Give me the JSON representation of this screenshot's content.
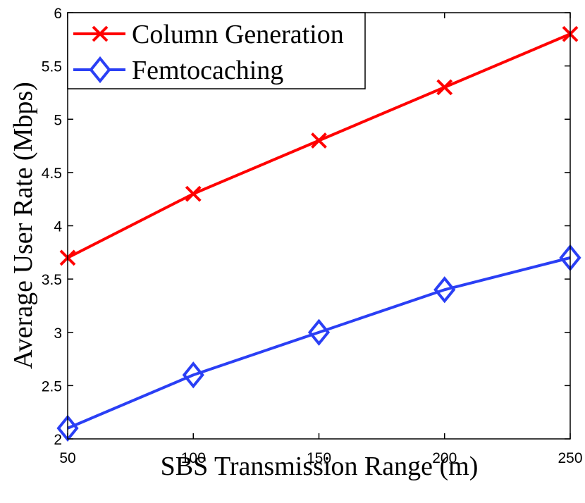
{
  "chart_data": {
    "type": "line",
    "title": "",
    "xlabel": "SBS Transmission Range (m)",
    "ylabel": "Average User Rate (Mbps)",
    "xlim": [
      50,
      250
    ],
    "ylim": [
      2,
      6
    ],
    "xticks": [
      "50",
      "100",
      "150",
      "200",
      "250"
    ],
    "yticks": [
      "2",
      "2.5",
      "3",
      "3.5",
      "4",
      "4.5",
      "5",
      "5.5",
      "6"
    ],
    "grid": false,
    "legend_position": "top-left",
    "x": [
      50,
      100,
      150,
      200,
      250
    ],
    "series": [
      {
        "name": "Column Generation",
        "values": [
          3.7,
          4.3,
          4.8,
          5.3,
          5.8
        ],
        "color": "#ff0000",
        "marker": "x"
      },
      {
        "name": "Femtocaching",
        "values": [
          2.1,
          2.6,
          3.0,
          3.4,
          3.7
        ],
        "color": "#2a3ff5",
        "marker": "diamond"
      }
    ]
  }
}
